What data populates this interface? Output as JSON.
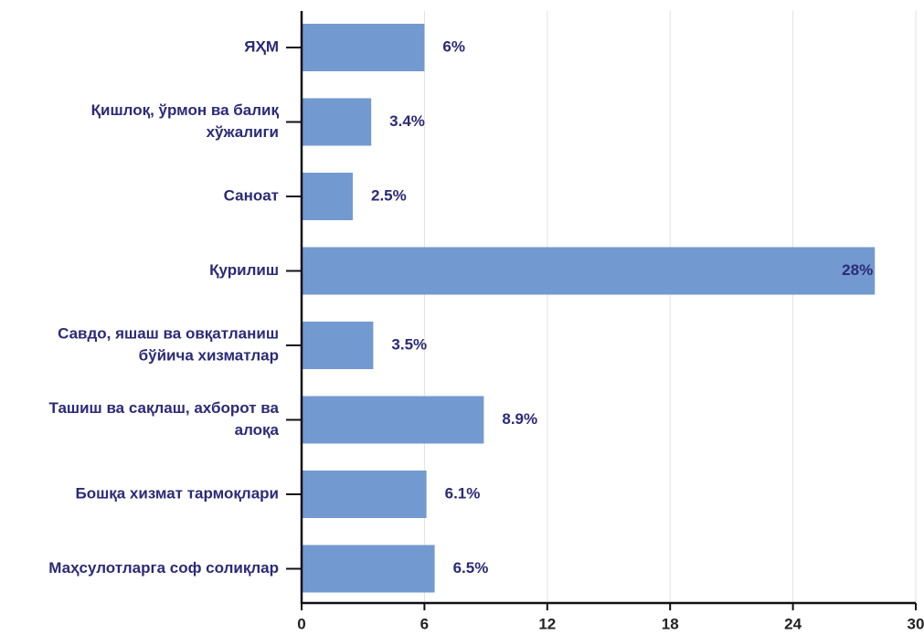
{
  "chart_data": {
    "type": "bar",
    "orientation": "horizontal",
    "categories": [
      [
        "ЯҲМ"
      ],
      [
        "Қишлоқ, ўрмон ва балиқ",
        "хўжалиги"
      ],
      [
        "Саноат"
      ],
      [
        "Қурилиш"
      ],
      [
        "Савдо, яшаш ва овқатланиш",
        "бўйича хизматлар"
      ],
      [
        "Ташиш ва сақлаш, ахборот ва",
        "алоқа"
      ],
      [
        "Бошқа хизмат тармоқлари"
      ],
      [
        "Маҳсулотларга соф солиқлар"
      ]
    ],
    "values": [
      6,
      3.4,
      2.5,
      28,
      3.5,
      8.9,
      6.1,
      6.5
    ],
    "value_labels": [
      "6%",
      "3.4%",
      "2.5%",
      "28%",
      "3.5%",
      "8.9%",
      "6.1%",
      "6.5%"
    ],
    "color": "#7399d1",
    "xlim": [
      0,
      30
    ],
    "xticks": [
      0,
      6,
      12,
      18,
      24,
      30
    ],
    "grid": true
  }
}
